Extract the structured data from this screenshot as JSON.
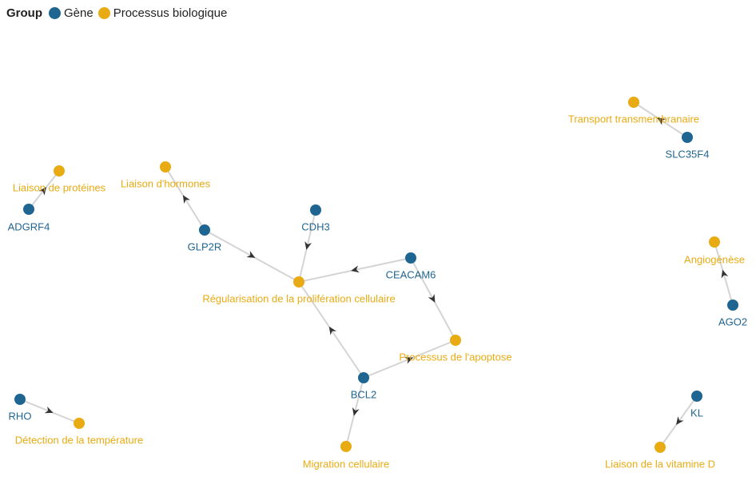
{
  "legend": {
    "title": "Group",
    "items": [
      {
        "key": "gene",
        "label": "Gène",
        "color": "#1f6591"
      },
      {
        "key": "process",
        "label": "Processus biologique",
        "color": "#e8ab13"
      }
    ]
  },
  "colors": {
    "gene": "#1f6591",
    "process": "#e8ab13",
    "edge": "#d4d4d4",
    "arrow": "#333333"
  },
  "nodes": [
    {
      "id": "ADGRF4",
      "label": "ADGRF4",
      "group": "gene"
    },
    {
      "id": "liaison_proteines",
      "label": "Liaison de protéines",
      "group": "process"
    },
    {
      "id": "GLP2R",
      "label": "GLP2R",
      "group": "gene"
    },
    {
      "id": "liaison_hormones",
      "label": "Liaison d'hormones",
      "group": "process"
    },
    {
      "id": "CDH3",
      "label": "CDH3",
      "group": "gene"
    },
    {
      "id": "CEACAM6",
      "label": "CEACAM6",
      "group": "gene"
    },
    {
      "id": "regul_prolif",
      "label": "Régularisation de la prolifération cellulaire",
      "group": "process"
    },
    {
      "id": "proc_apoptose",
      "label": "Processus de l'apoptose",
      "group": "process"
    },
    {
      "id": "BCL2",
      "label": "BCL2",
      "group": "gene"
    },
    {
      "id": "migration",
      "label": "Migration cellulaire",
      "group": "process"
    },
    {
      "id": "RHO",
      "label": "RHO",
      "group": "gene"
    },
    {
      "id": "detect_temp",
      "label": "Détection de la température",
      "group": "process"
    },
    {
      "id": "transport",
      "label": "Transport transmembranaire",
      "group": "process"
    },
    {
      "id": "SLC35F4",
      "label": "SLC35F4",
      "group": "gene"
    },
    {
      "id": "angiogenese",
      "label": "Angiogénèse",
      "group": "process"
    },
    {
      "id": "AGO2",
      "label": "AGO2",
      "group": "gene"
    },
    {
      "id": "KL",
      "label": "KL",
      "group": "gene"
    },
    {
      "id": "liaison_vitD",
      "label": "Liaison de la vitamine D",
      "group": "process"
    }
  ],
  "edges": [
    {
      "source": "ADGRF4",
      "target": "liaison_proteines"
    },
    {
      "source": "GLP2R",
      "target": "liaison_hormones"
    },
    {
      "source": "GLP2R",
      "target": "regul_prolif"
    },
    {
      "source": "CDH3",
      "target": "regul_prolif"
    },
    {
      "source": "CEACAM6",
      "target": "regul_prolif"
    },
    {
      "source": "CEACAM6",
      "target": "proc_apoptose"
    },
    {
      "source": "BCL2",
      "target": "regul_prolif"
    },
    {
      "source": "BCL2",
      "target": "proc_apoptose"
    },
    {
      "source": "BCL2",
      "target": "migration"
    },
    {
      "source": "RHO",
      "target": "detect_temp"
    },
    {
      "source": "SLC35F4",
      "target": "transport"
    },
    {
      "source": "AGO2",
      "target": "angiogenese"
    },
    {
      "source": "KL",
      "target": "liaison_vitD"
    }
  ]
}
